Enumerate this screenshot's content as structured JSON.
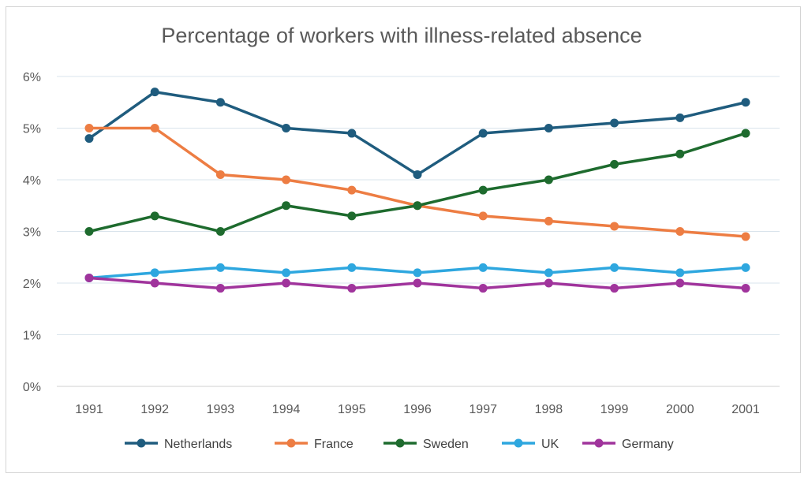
{
  "chart_data": {
    "type": "line",
    "title": "Percentage of workers with illness-related absence",
    "xlabel": "",
    "ylabel": "",
    "x": [
      "1991",
      "1992",
      "1993",
      "1994",
      "1995",
      "1996",
      "1997",
      "1998",
      "1999",
      "2000",
      "2001"
    ],
    "y_ticks": [
      "0%",
      "1%",
      "2%",
      "3%",
      "4%",
      "5%",
      "6%"
    ],
    "ylim": [
      0,
      6
    ],
    "grid": true,
    "legend": "bottom",
    "series": [
      {
        "name": "Netherlands",
        "color": "#1f5c7e",
        "values": [
          4.8,
          5.7,
          5.5,
          5.0,
          4.9,
          4.1,
          4.9,
          5.0,
          5.1,
          5.2,
          5.5
        ]
      },
      {
        "name": "France",
        "color": "#ed7d43",
        "values": [
          5.0,
          5.0,
          4.1,
          4.0,
          3.8,
          3.5,
          3.3,
          3.2,
          3.1,
          3.0,
          2.9
        ]
      },
      {
        "name": "Sweden",
        "color": "#1e6b2e",
        "values": [
          3.0,
          3.3,
          3.0,
          3.5,
          3.3,
          3.5,
          3.8,
          4.0,
          4.3,
          4.5,
          4.9
        ]
      },
      {
        "name": "UK",
        "color": "#2ea7df",
        "values": [
          2.1,
          2.2,
          2.3,
          2.2,
          2.3,
          2.2,
          2.3,
          2.2,
          2.3,
          2.2,
          2.3
        ]
      },
      {
        "name": "Germany",
        "color": "#a0349c",
        "values": [
          2.1,
          2.0,
          1.9,
          2.0,
          1.9,
          2.0,
          1.9,
          2.0,
          1.9,
          2.0,
          1.9
        ]
      }
    ]
  }
}
